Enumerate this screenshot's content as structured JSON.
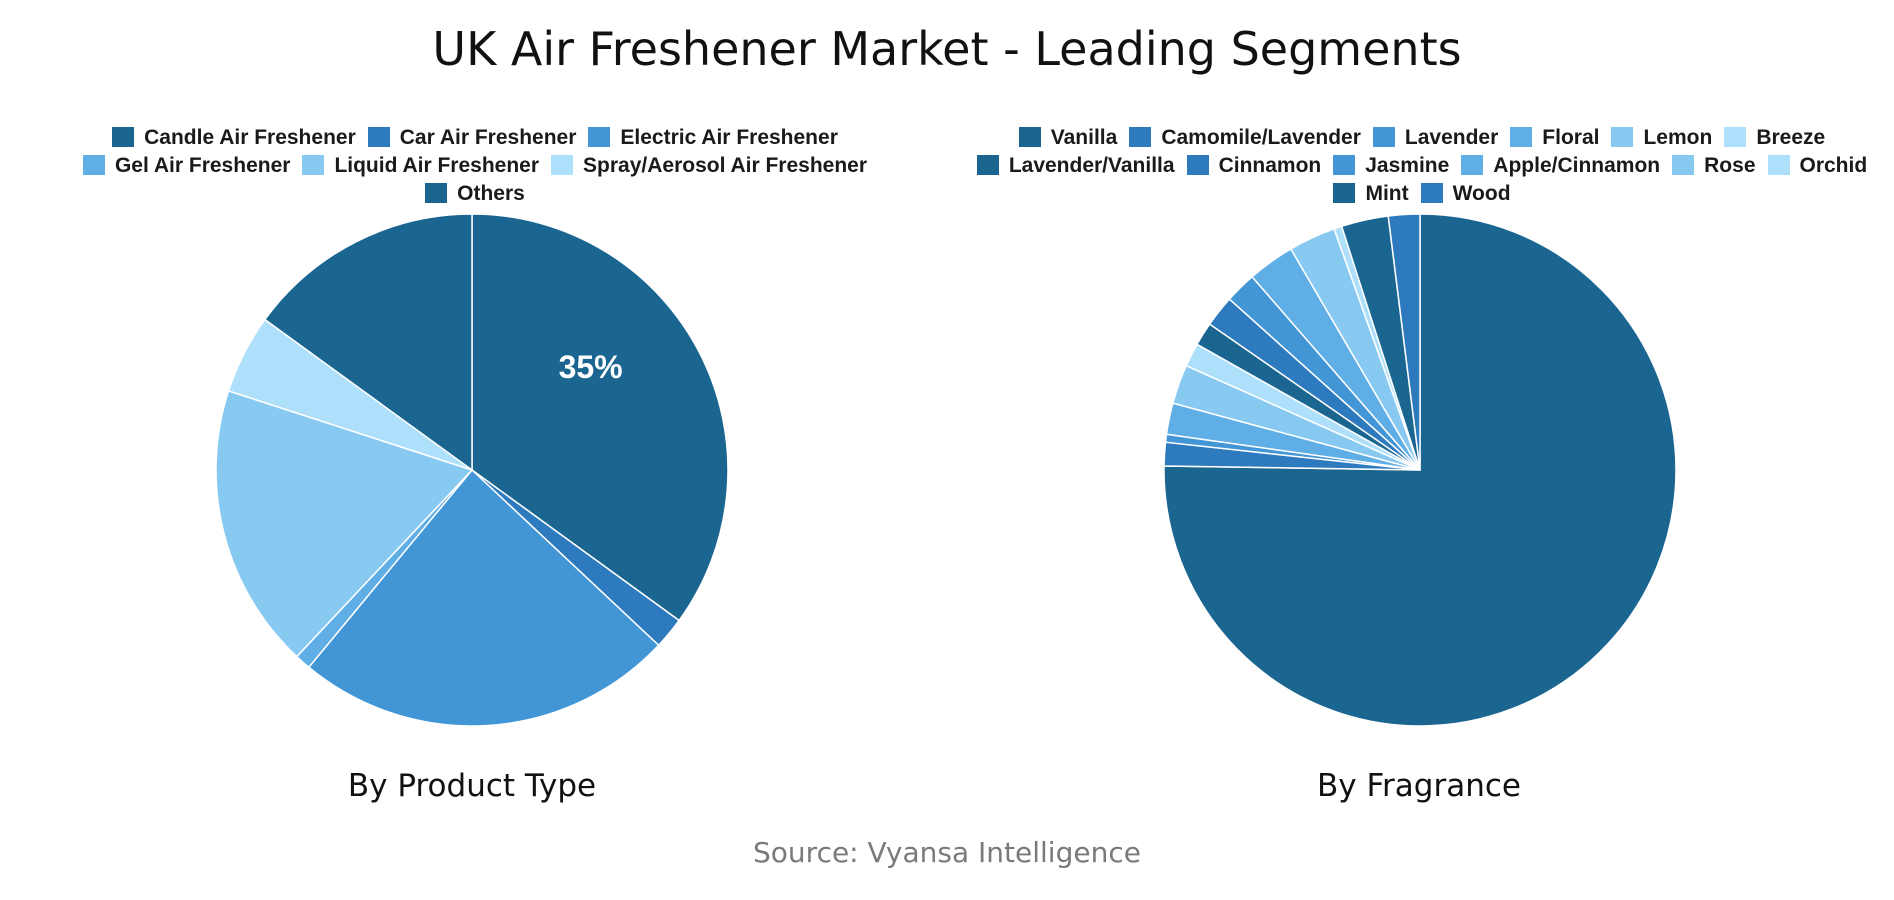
{
  "title": "UK Air Freshener Market - Leading Segments",
  "source": "Source: Vyansa Intelligence",
  "chart_data": [
    {
      "type": "pie",
      "title": "By Product Type",
      "slices": [
        {
          "label": "Candle Air Freshener",
          "value": 35,
          "color": "#1b6591",
          "data_label": "35%"
        },
        {
          "label": "Car Air Freshener",
          "value": 2,
          "color": "#2e7abf"
        },
        {
          "label": "Electric Air Freshener",
          "value": 24,
          "color": "#4296d5"
        },
        {
          "label": "Gel Air Freshener",
          "value": 1,
          "color": "#5faee6"
        },
        {
          "label": "Liquid Air Freshener",
          "value": 18,
          "color": "#88c9f2"
        },
        {
          "label": "Spray/Aerosol Air Freshener",
          "value": 5,
          "color": "#aee0fb"
        },
        {
          "label": "Others",
          "value": 15,
          "color": "#1b6591"
        }
      ]
    },
    {
      "type": "pie",
      "title": "By Fragrance",
      "slices": [
        {
          "label": "Vanilla",
          "value": 76,
          "color": "#1b6591"
        },
        {
          "label": "Camomile/Lavender",
          "value": 1.5,
          "color": "#2e7abf"
        },
        {
          "label": "Lavender",
          "value": 0.5,
          "color": "#4296d5"
        },
        {
          "label": "Floral",
          "value": 2,
          "color": "#5faee6"
        },
        {
          "label": "Lemon",
          "value": 2.5,
          "color": "#88c9f2"
        },
        {
          "label": "Breeze",
          "value": 1.5,
          "color": "#aee0fb"
        },
        {
          "label": "Lavender/Vanilla",
          "value": 1.5,
          "color": "#1b6591"
        },
        {
          "label": "Cinnamon",
          "value": 2,
          "color": "#2e7abf"
        },
        {
          "label": "Jasmine",
          "value": 2,
          "color": "#4296d5"
        },
        {
          "label": "Apple/Cinnamon",
          "value": 3,
          "color": "#5faee6"
        },
        {
          "label": "Rose",
          "value": 3,
          "color": "#88c9f2"
        },
        {
          "label": "Orchid",
          "value": 0.5,
          "color": "#aee0fb"
        },
        {
          "label": "Mint",
          "value": 3,
          "color": "#1b6591"
        },
        {
          "label": "Wood",
          "value": 2,
          "color": "#2e7abf"
        }
      ]
    }
  ]
}
